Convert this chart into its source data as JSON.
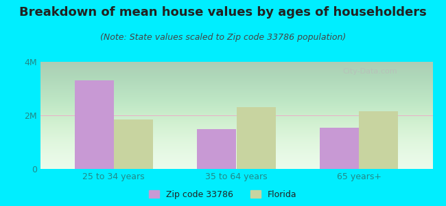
{
  "title": "Breakdown of mean house values by ages of householders",
  "subtitle": "(Note: State values scaled to Zip code 33786 population)",
  "categories": [
    "25 to 34 years",
    "35 to 64 years",
    "65 years+"
  ],
  "zip_values": [
    3300000,
    1500000,
    1550000
  ],
  "florida_values": [
    1850000,
    2300000,
    2150000
  ],
  "zip_color": "#c899d4",
  "florida_color": "#c8d4a0",
  "background_color": "#00eeff",
  "ylim": [
    0,
    4000000
  ],
  "yticks": [
    0,
    2000000,
    4000000
  ],
  "ytick_labels": [
    "0",
    "2M",
    "4M"
  ],
  "legend_zip_label": "Zip code 33786",
  "legend_florida_label": "Florida",
  "bar_width": 0.32,
  "title_fontsize": 13,
  "subtitle_fontsize": 9,
  "tick_fontsize": 9,
  "legend_fontsize": 9,
  "watermark": "City-Data.com"
}
